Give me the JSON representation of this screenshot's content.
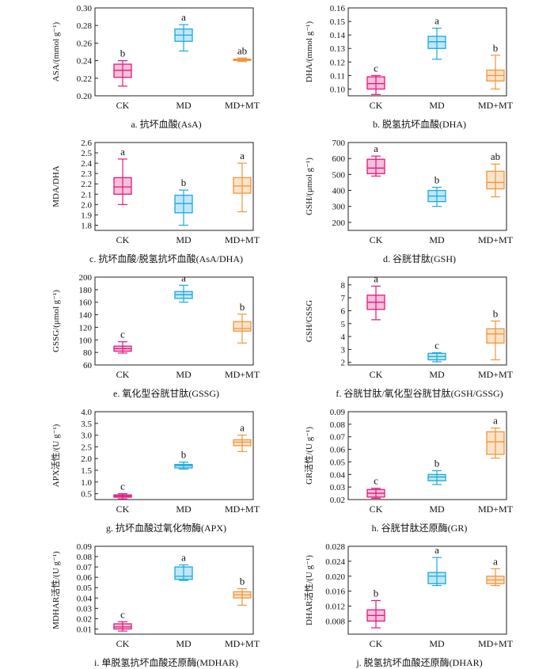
{
  "colors": {
    "CK": "#e0197d",
    "MD": "#1ba9dd",
    "MD+MT": "#f0963a"
  },
  "chart_data": [
    {
      "type": "box",
      "caption": "a.  抗坏血酸(AsA)",
      "ylabel": "ASA/(mmol  g⁻¹)",
      "ylim": [
        0.2,
        0.3
      ],
      "yticks": [
        "0.20",
        "0.22",
        "0.24",
        "0.26",
        "0.28",
        "0.30"
      ],
      "categories": [
        "CK",
        "MD",
        "MD+MT"
      ],
      "boxes": [
        {
          "min": 0.211,
          "q1": 0.221,
          "median": 0.229,
          "q3": 0.236,
          "max": 0.24,
          "label": "b"
        },
        {
          "min": 0.251,
          "q1": 0.262,
          "median": 0.269,
          "q3": 0.276,
          "max": 0.281,
          "label": "a"
        },
        {
          "min": 0.239,
          "q1": 0.2402,
          "median": 0.241,
          "q3": 0.2418,
          "max": 0.243,
          "label": "ab"
        }
      ]
    },
    {
      "type": "box",
      "caption": "b.  脱氢抗坏血酸(DHA)",
      "ylabel": "DHA/(mmol  g⁻¹)",
      "ylim": [
        0.095,
        0.16
      ],
      "yticks": [
        "0.10",
        "0.11",
        "0.12",
        "0.13",
        "0.14",
        "0.15",
        "0.16"
      ],
      "categories": [
        "CK",
        "MD",
        "MD+MT"
      ],
      "boxes": [
        {
          "min": 0.096,
          "q1": 0.1,
          "median": 0.104,
          "q3": 0.109,
          "max": 0.11,
          "label": "c"
        },
        {
          "min": 0.122,
          "q1": 0.13,
          "median": 0.135,
          "q3": 0.139,
          "max": 0.145,
          "label": "a"
        },
        {
          "min": 0.1,
          "q1": 0.106,
          "median": 0.11,
          "q3": 0.114,
          "max": 0.125,
          "label": "b"
        }
      ]
    },
    {
      "type": "box",
      "caption": "c.  抗坏血酸/脱氢抗坏血酸(AsA/DHA)",
      "ylabel": "MDA/DHA",
      "ylim": [
        1.75,
        2.6
      ],
      "yticks": [
        "1.8",
        "1.9",
        "2.0",
        "2.1",
        "2.2",
        "2.3",
        "2.4",
        "2.5",
        "2.6"
      ],
      "categories": [
        "CK",
        "MD",
        "MD+MT"
      ],
      "boxes": [
        {
          "min": 2.0,
          "q1": 2.1,
          "median": 2.17,
          "q3": 2.26,
          "max": 2.44,
          "label": "a"
        },
        {
          "min": 1.8,
          "q1": 1.92,
          "median": 2.01,
          "q3": 2.09,
          "max": 2.14,
          "label": "b"
        },
        {
          "min": 1.93,
          "q1": 2.11,
          "median": 2.18,
          "q3": 2.26,
          "max": 2.4,
          "label": "a"
        }
      ]
    },
    {
      "type": "box",
      "caption": "d.  谷胱甘肽(GSH)",
      "ylabel": "GSH/(μmol  g⁻¹)",
      "ylim": [
        150,
        700
      ],
      "yticks": [
        "200",
        "300",
        "400",
        "500",
        "600",
        "700"
      ],
      "categories": [
        "CK",
        "MD",
        "MD+MT"
      ],
      "boxes": [
        {
          "min": 490,
          "q1": 505,
          "median": 540,
          "q3": 595,
          "max": 615,
          "label": "a"
        },
        {
          "min": 300,
          "q1": 330,
          "median": 365,
          "q3": 400,
          "max": 420,
          "label": "b"
        },
        {
          "min": 360,
          "q1": 410,
          "median": 450,
          "q3": 520,
          "max": 565,
          "label": "ab"
        }
      ]
    },
    {
      "type": "box",
      "caption": "e.  氧化型谷胱甘肽(GSSG)",
      "ylabel": "GSSG/(μmol  g⁻¹)",
      "ylim": [
        60,
        200
      ],
      "yticks": [
        "60",
        "80",
        "100",
        "120",
        "140",
        "160",
        "180",
        "200"
      ],
      "categories": [
        "CK",
        "MD",
        "MD+MT"
      ],
      "boxes": [
        {
          "min": 79,
          "q1": 82,
          "median": 86,
          "q3": 90,
          "max": 97,
          "label": "c"
        },
        {
          "min": 160,
          "q1": 166,
          "median": 172,
          "q3": 177,
          "max": 187,
          "label": "a"
        },
        {
          "min": 95,
          "q1": 114,
          "median": 118,
          "q3": 129,
          "max": 141,
          "label": "b"
        }
      ]
    },
    {
      "type": "box",
      "caption": "f.  谷胱甘肽/氧化型谷胱甘肽(GSH/GSSG)",
      "ylabel": "GSH/GSSG",
      "ylim": [
        1.8,
        8.6
      ],
      "yticks": [
        "2",
        "3",
        "4",
        "5",
        "6",
        "7",
        "8"
      ],
      "categories": [
        "CK",
        "MD",
        "MD+MT"
      ],
      "boxes": [
        {
          "min": 5.3,
          "q1": 6.1,
          "median": 6.65,
          "q3": 7.2,
          "max": 7.9,
          "label": "a"
        },
        {
          "min": 2.05,
          "q1": 2.2,
          "median": 2.45,
          "q3": 2.7,
          "max": 2.75,
          "label": "c"
        },
        {
          "min": 2.2,
          "q1": 3.5,
          "median": 4.2,
          "q3": 4.6,
          "max": 5.2,
          "label": "b"
        }
      ]
    },
    {
      "type": "box",
      "caption": "g.  抗坏血酸过氧化物酶(APX)",
      "ylabel": "APX活性/(U  g⁻¹)",
      "ylim": [
        0.25,
        4.0
      ],
      "yticks": [
        "0.5",
        "1.0",
        "1.5",
        "2.0",
        "2.5",
        "3.0",
        "3.5",
        "4.0"
      ],
      "categories": [
        "CK",
        "MD",
        "MD+MT"
      ],
      "boxes": [
        {
          "min": 0.28,
          "q1": 0.35,
          "median": 0.4,
          "q3": 0.45,
          "max": 0.5,
          "label": "c"
        },
        {
          "min": 1.55,
          "q1": 1.6,
          "median": 1.7,
          "q3": 1.75,
          "max": 1.85,
          "label": "b"
        },
        {
          "min": 2.3,
          "q1": 2.55,
          "median": 2.7,
          "q3": 2.8,
          "max": 3.0,
          "label": "a"
        }
      ]
    },
    {
      "type": "box",
      "caption": "h.  谷胱甘肽还原酶(GR)",
      "ylabel": "GR活性/(U  g⁻¹)",
      "ylim": [
        0.02,
        0.09
      ],
      "yticks": [
        "0.02",
        "0.03",
        "0.04",
        "0.05",
        "0.06",
        "0.07",
        "0.08",
        "0.09"
      ],
      "categories": [
        "CK",
        "MD",
        "MD+MT"
      ],
      "boxes": [
        {
          "min": 0.021,
          "q1": 0.022,
          "median": 0.025,
          "q3": 0.028,
          "max": 0.029,
          "label": "c"
        },
        {
          "min": 0.032,
          "q1": 0.035,
          "median": 0.038,
          "q3": 0.04,
          "max": 0.043,
          "label": "b"
        },
        {
          "min": 0.053,
          "q1": 0.056,
          "median": 0.066,
          "q3": 0.074,
          "max": 0.077,
          "label": "a"
        }
      ]
    },
    {
      "type": "box",
      "caption": "i.  单脱氢抗坏血酸还原酶(MDHAR)",
      "ylabel": "MDHAR活性/(U  g⁻¹)",
      "ylim": [
        0.005,
        0.09
      ],
      "yticks": [
        "0.01",
        "0.02",
        "0.03",
        "0.04",
        "0.05",
        "0.06",
        "0.07",
        "0.08",
        "0.09"
      ],
      "categories": [
        "CK",
        "MD",
        "MD+MT"
      ],
      "boxes": [
        {
          "min": 0.008,
          "q1": 0.01,
          "median": 0.012,
          "q3": 0.015,
          "max": 0.017,
          "label": "c"
        },
        {
          "min": 0.057,
          "q1": 0.058,
          "median": 0.061,
          "q3": 0.07,
          "max": 0.072,
          "label": "a"
        },
        {
          "min": 0.033,
          "q1": 0.04,
          "median": 0.043,
          "q3": 0.046,
          "max": 0.049,
          "label": "b"
        }
      ]
    },
    {
      "type": "box",
      "caption": "j.  脱氢抗坏血酸还原酶(DHAR)",
      "ylabel": "DHAR活性/(U  g⁻¹)",
      "ylim": [
        0.0045,
        0.028
      ],
      "yticks": [
        "0.008",
        "0.012",
        "0.016",
        "0.020",
        "0.024",
        "0.028"
      ],
      "categories": [
        "CK",
        "MD",
        "MD+MT"
      ],
      "boxes": [
        {
          "min": 0.0062,
          "q1": 0.008,
          "median": 0.0095,
          "q3": 0.011,
          "max": 0.0135,
          "label": "b"
        },
        {
          "min": 0.0175,
          "q1": 0.018,
          "median": 0.02,
          "q3": 0.021,
          "max": 0.025,
          "label": "a"
        },
        {
          "min": 0.0175,
          "q1": 0.018,
          "median": 0.019,
          "q3": 0.02,
          "max": 0.022,
          "label": "a"
        }
      ]
    }
  ]
}
